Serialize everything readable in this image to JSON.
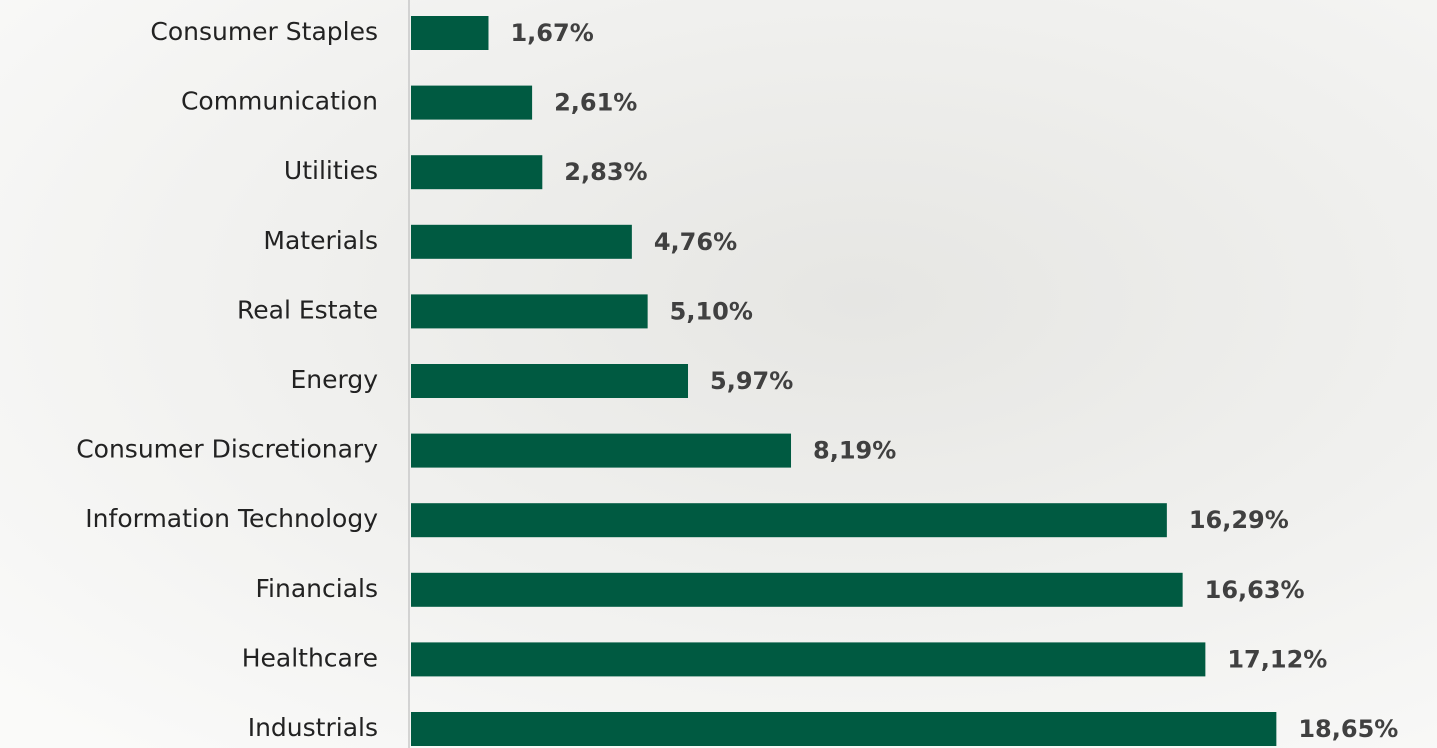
{
  "chart_data": {
    "type": "bar",
    "orientation": "horizontal",
    "categories": [
      "Consumer Staples",
      "Communication",
      "Utilities",
      "Materials",
      "Real Estate",
      "Energy",
      "Consumer Discretionary",
      "Information Technology",
      "Financials",
      "Healthcare",
      "Industrials"
    ],
    "values": [
      1.67,
      2.61,
      2.83,
      4.76,
      5.1,
      5.97,
      8.19,
      16.29,
      16.63,
      17.12,
      18.65
    ],
    "value_labels": [
      "1,67%",
      "2,61%",
      "2,83%",
      "4,76%",
      "5,10%",
      "5,97%",
      "8,19%",
      "16,29%",
      "16,63%",
      "17,12%",
      "18,65%"
    ],
    "color": "#005a41"
  }
}
